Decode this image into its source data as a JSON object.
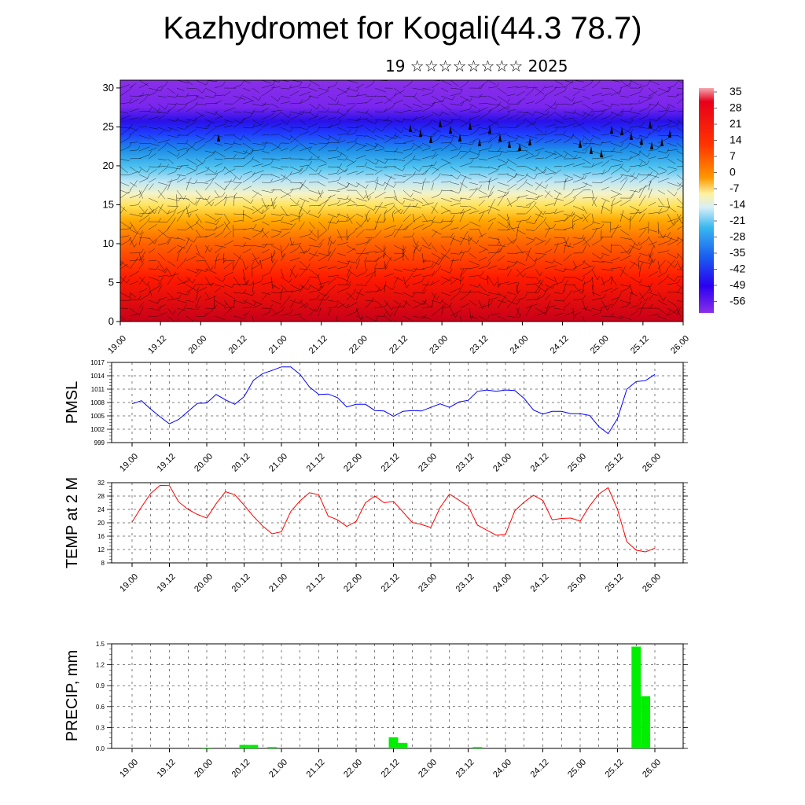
{
  "title": "Kazhydromet for Kogali(44.3 78.7)",
  "subtitle": "19 ☆☆☆☆☆☆☆☆ 2025",
  "colorbar": {
    "labels": [
      "35",
      "28",
      "21",
      "14",
      "7",
      "0",
      "-7",
      "-14",
      "-21",
      "-28",
      "-35",
      "-42",
      "-49",
      "-56"
    ]
  },
  "time_labels": [
    "19.00",
    "19.12",
    "20.00",
    "20.12",
    "21.00",
    "21.12",
    "22.00",
    "22.12",
    "23.00",
    "23.12",
    "24.00",
    "24.12",
    "25.00",
    "25.12",
    "26.00"
  ],
  "chart_data": [
    {
      "type": "heatmap",
      "title": "",
      "xlabel": "",
      "ylabel": "",
      "x": [
        "19.00",
        "19.12",
        "20.00",
        "20.12",
        "21.00",
        "21.12",
        "22.00",
        "22.12",
        "23.00",
        "23.12",
        "24.00",
        "24.12",
        "25.00",
        "25.12",
        "26.00"
      ],
      "y_ticks": [
        0,
        5,
        10,
        15,
        20,
        25,
        30
      ],
      "ylim": [
        0,
        31
      ],
      "colorbar_ticks": [
        35,
        28,
        21,
        14,
        7,
        0,
        -7,
        -14,
        -21,
        -28,
        -35,
        -42,
        -49,
        -56
      ],
      "description_of_field": "temperature with wind barbs"
    },
    {
      "type": "line",
      "ylabel": "PMSL",
      "ylim": [
        999,
        1017
      ],
      "y_ticks": [
        999,
        1002,
        1005,
        1008,
        1011,
        1014,
        1017
      ],
      "color": "#0000ff",
      "values": [
        1007.7,
        1008.4,
        1006.5,
        1004.8,
        1003.2,
        1004.2,
        1006.0,
        1007.8,
        1007.9,
        1009.8,
        1008.6,
        1007.6,
        1009.3,
        1013.0,
        1014.5,
        1015.2,
        1016.0,
        1016.0,
        1014.3,
        1011.5,
        1009.8,
        1009.9,
        1009.1,
        1007.0,
        1007.6,
        1007.6,
        1006.2,
        1006.1,
        1004.9,
        1006.0,
        1006.2,
        1006.1,
        1006.9,
        1007.7,
        1006.9,
        1008.1,
        1008.5,
        1010.5,
        1010.8,
        1010.5,
        1010.8,
        1010.7,
        1008.9,
        1006.3,
        1005.4,
        1006.0,
        1006.0,
        1005.5,
        1005.5,
        1005.1,
        1002.6,
        1001.0,
        1004.4,
        1011.0,
        1012.7,
        1012.9,
        1014.3
      ]
    },
    {
      "type": "line",
      "ylabel": "TEMP at 2 M",
      "ylim": [
        8,
        32
      ],
      "y_ticks": [
        8,
        12,
        16,
        20,
        24,
        28,
        32
      ],
      "color": "#ff0000",
      "values": [
        20.2,
        24.7,
        28.8,
        31.2,
        31.1,
        26.2,
        24.0,
        22.5,
        21.4,
        25.7,
        29.3,
        28.4,
        25.3,
        21.9,
        19.0,
        16.7,
        17.3,
        23.4,
        26.6,
        29.0,
        28.4,
        22.0,
        20.9,
        18.9,
        20.4,
        26.0,
        28.0,
        26.0,
        26.4,
        23.3,
        20.1,
        19.5,
        18.6,
        24.6,
        28.6,
        26.8,
        25.0,
        19.3,
        17.8,
        16.3,
        16.5,
        23.6,
        26.2,
        28.2,
        26.7,
        20.9,
        21.3,
        21.4,
        20.5,
        25.0,
        28.6,
        30.5,
        24.0,
        14.3,
        11.8,
        11.3,
        12.4
      ]
    },
    {
      "type": "bar",
      "ylabel": "PRECIP, mm",
      "ylim": [
        0,
        1.5
      ],
      "y_ticks": [
        0.0,
        0.3,
        0.6,
        0.9,
        1.2,
        1.5
      ],
      "y_tick_labels": [
        "0.0",
        "0.3",
        "0.6",
        "0.9",
        "1.2",
        "1.5"
      ],
      "color": "#00ee00",
      "bars": [
        {
          "step": 8,
          "value": 0.01
        },
        {
          "step": 12,
          "value": 0.05
        },
        {
          "step": 13,
          "value": 0.05
        },
        {
          "step": 15,
          "value": 0.02
        },
        {
          "step": 28,
          "value": 0.16
        },
        {
          "step": 29,
          "value": 0.08
        },
        {
          "step": 37,
          "value": 0.02
        },
        {
          "step": 54,
          "value": 1.46
        },
        {
          "step": 55,
          "value": 0.75
        }
      ]
    }
  ]
}
